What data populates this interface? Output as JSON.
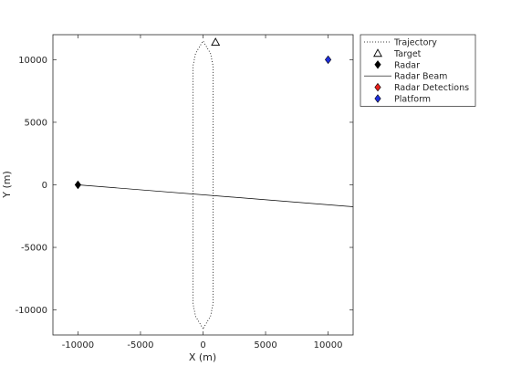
{
  "chart_data": {
    "type": "scatter",
    "xlabel": "X (m)",
    "ylabel": "Y (m)",
    "xlim": [
      -12000,
      12000
    ],
    "ylim": [
      -12000,
      12000
    ],
    "xticks": [
      -10000,
      -5000,
      0,
      5000,
      10000
    ],
    "yticks": [
      -10000,
      -5000,
      0,
      5000,
      10000
    ],
    "grid": false,
    "legend_position": "outside-top-right",
    "series": [
      {
        "name": "Trajectory",
        "kind": "dotted-line",
        "color": "#000000",
        "x": [
          0,
          -600,
          -800,
          -800,
          -600,
          0,
          600,
          800,
          800,
          600,
          0
        ],
        "y": [
          -11500,
          -10500,
          -9500,
          9500,
          10500,
          11500,
          10500,
          9500,
          -9500,
          -10500,
          -11500
        ]
      },
      {
        "name": "Target",
        "kind": "marker",
        "marker": "triangle-open",
        "color": "#000000",
        "x": [
          1000
        ],
        "y": [
          11400
        ]
      },
      {
        "name": "Radar",
        "kind": "marker",
        "marker": "diamond-filled",
        "color": "#000000",
        "x": [
          -10000
        ],
        "y": [
          0
        ]
      },
      {
        "name": "Radar Beam",
        "kind": "line",
        "color": "#000000",
        "x": [
          -10000,
          12000
        ],
        "y": [
          0,
          -1750
        ]
      },
      {
        "name": "Radar Detections",
        "kind": "marker",
        "marker": "diamond-filled",
        "color": "#e8211c",
        "x": [],
        "y": []
      },
      {
        "name": "Platform",
        "kind": "marker",
        "marker": "diamond-filled",
        "color": "#1f2fe0",
        "x": [
          10000
        ],
        "y": [
          10000
        ]
      }
    ]
  }
}
